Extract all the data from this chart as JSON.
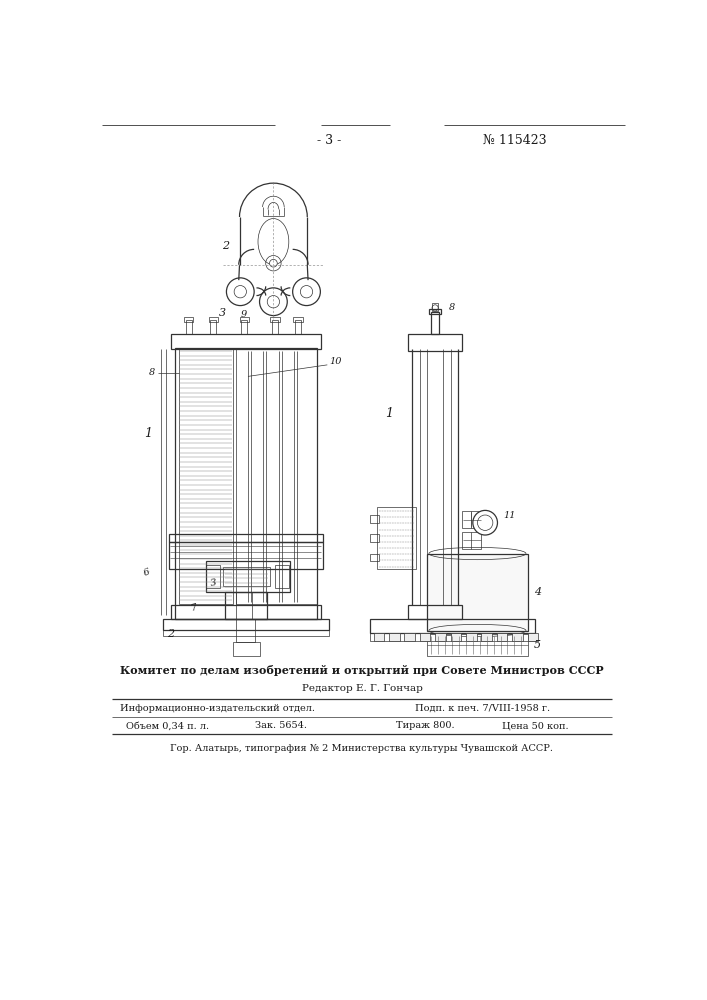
{
  "page_number": "- 3 -",
  "patent_number": "№ 115423",
  "bg_color": "#ffffff",
  "line_color": "#333333",
  "committee_text": "Комитет по делам изобретений и открытий при Совете Министров СССР",
  "editor_text": "Редактор Е. Г. Гончар",
  "row1_left": "Информационно-издательский отдел.",
  "row1_right": "Подп. к печ. 7/VIII-1958 г.",
  "row2_left": "Объем 0,34 п. л.",
  "row2_mid": "Зак. 5654.",
  "row2_right_left": "Тираж 800.",
  "row2_right_right": "Цена 50 коп.",
  "footer_text": "Гор. Алатырь, типография № 2 Министерства культуры Чувашской АССР."
}
